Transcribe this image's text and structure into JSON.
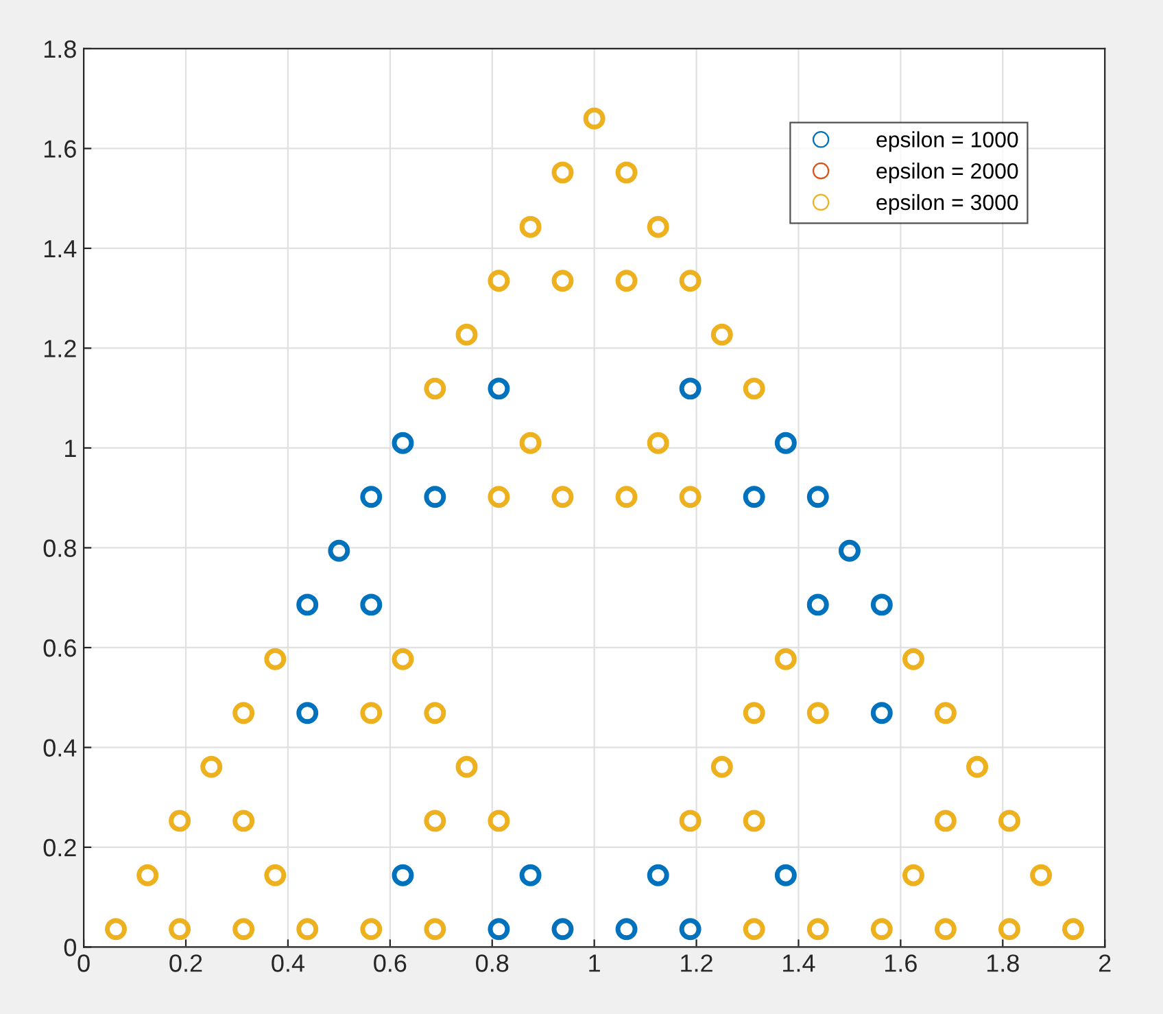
{
  "chart_data": {
    "type": "scatter",
    "marker": "circle",
    "grid": true,
    "legend": "top right",
    "xlim": [
      0,
      2
    ],
    "xticks": [
      0,
      0.2,
      0.4,
      0.6,
      0.8,
      1,
      1.2,
      1.4,
      1.6,
      1.8,
      2
    ],
    "ylim": [
      0,
      1.8
    ],
    "yticks": [
      0,
      0.2,
      0.4,
      0.6,
      0.8,
      1,
      1.2,
      1.4,
      1.6,
      1.8
    ],
    "series": [
      {
        "name": "epsilon = 1000",
        "color": "#0072bd",
        "x": [
          0.625,
          0.813,
          0.938,
          0.875,
          0.438,
          0.438,
          0.563,
          0.5,
          1.063,
          1.188,
          1.125,
          1.375,
          1.563,
          1.438,
          1.563,
          1.5,
          0.563,
          0.688,
          0.625,
          0.813,
          1.313,
          1.438,
          1.375,
          1.188
        ],
        "values": [
          0.144,
          0.036,
          0.036,
          0.144,
          0.469,
          0.686,
          0.686,
          0.794,
          0.036,
          0.036,
          0.144,
          0.144,
          0.469,
          0.686,
          0.686,
          0.794,
          0.902,
          0.902,
          1.01,
          1.119,
          0.902,
          0.902,
          1.01,
          1.119
        ]
      },
      {
        "name": "epsilon = 2000",
        "color": "#d95319"
      },
      {
        "name": "epsilon = 3000",
        "color": "#edb120",
        "x": [
          0.063,
          0.188,
          0.125,
          0.313,
          0.438,
          0.375,
          0.188,
          0.313,
          0.25,
          0.563,
          0.688,
          0.688,
          0.813,
          0.75,
          0.313,
          0.375,
          0.563,
          0.688,
          0.625,
          1.313,
          1.438,
          1.188,
          1.313,
          1.25,
          1.563,
          1.688,
          1.625,
          1.813,
          1.938,
          1.875,
          1.688,
          1.813,
          1.75,
          1.313,
          1.438,
          1.375,
          1.688,
          1.625,
          0.813,
          0.938,
          0.875,
          0.688,
          0.75,
          1.063,
          1.188,
          1.125,
          1.313,
          1.25,
          0.813,
          0.938,
          0.875,
          1.063,
          1.188,
          1.125,
          0.938,
          1.063,
          1
        ],
        "values": [
          0.036,
          0.036,
          0.144,
          0.036,
          0.036,
          0.144,
          0.253,
          0.253,
          0.361,
          0.036,
          0.036,
          0.253,
          0.253,
          0.361,
          0.469,
          0.577,
          0.469,
          0.469,
          0.577,
          0.036,
          0.036,
          0.253,
          0.253,
          0.361,
          0.036,
          0.036,
          0.144,
          0.036,
          0.036,
          0.144,
          0.253,
          0.253,
          0.361,
          0.469,
          0.469,
          0.577,
          0.469,
          0.577,
          0.902,
          0.902,
          1.01,
          1.119,
          1.227,
          0.902,
          0.902,
          1.01,
          1.119,
          1.227,
          1.335,
          1.335,
          1.443,
          1.335,
          1.335,
          1.443,
          1.552,
          1.552,
          1.66
        ]
      }
    ]
  }
}
